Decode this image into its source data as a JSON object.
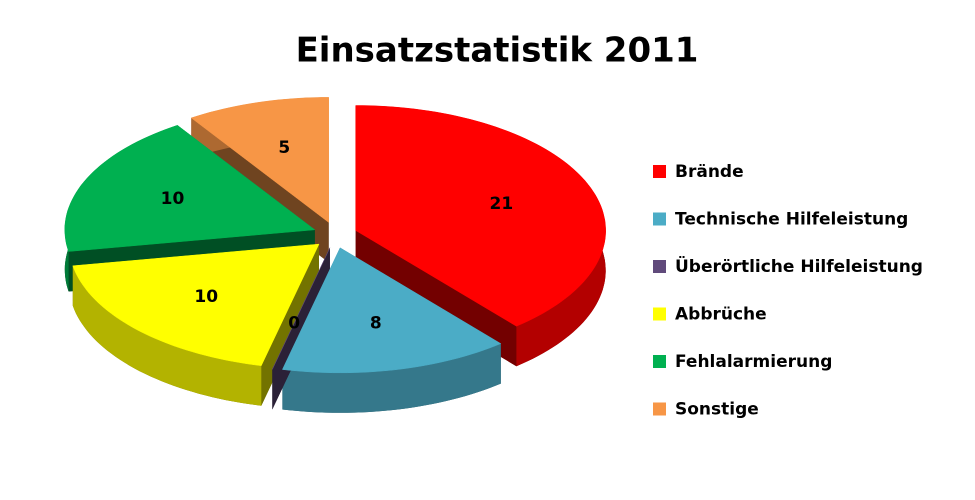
{
  "chart_data": {
    "type": "pie",
    "title": "Einsatzstatistik 2011",
    "categories": [
      "Brände",
      "Technische Hilfeleistung",
      "Überörtliche Hilfeleistung",
      "Abbrüche",
      "Fehlalarmierung",
      "Sonstige"
    ],
    "values": [
      21,
      8,
      0,
      10,
      10,
      5
    ],
    "colors": [
      "#ff0000",
      "#4bacc6",
      "#604a7b",
      "#ffff00",
      "#00b050",
      "#f79646"
    ],
    "legend": "right"
  }
}
